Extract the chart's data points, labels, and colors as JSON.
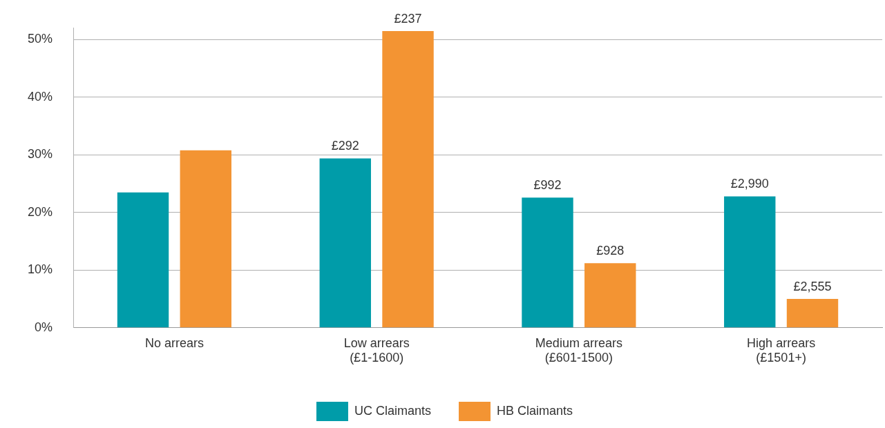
{
  "chart_data": {
    "type": "bar",
    "categories": [
      "No arrears",
      "Low arrears (£1-1600)",
      "Medium arrears (£601-1500)",
      "High arrears (£1501+)"
    ],
    "series": [
      {
        "name": "UC Claimants",
        "color": "#009ca9",
        "values": [
          23.5,
          29.4,
          22.6,
          22.8
        ]
      },
      {
        "name": "HB Claimants",
        "color": "#f39433",
        "values": [
          30.8,
          51.5,
          11.2,
          5.0
        ]
      }
    ],
    "annotations": [
      "£292",
      "£237",
      "£992",
      "£928",
      "£2,990",
      "£2,555"
    ],
    "ylim": [
      0,
      52
    ],
    "yticks": [
      {
        "value": 0,
        "label": "0%"
      },
      {
        "value": 10,
        "label": "10%"
      },
      {
        "value": 20,
        "label": "20%"
      },
      {
        "value": 30,
        "label": "30%"
      },
      {
        "value": 40,
        "label": "40%"
      },
      {
        "value": 50,
        "label": "50%"
      }
    ],
    "grid": "y",
    "legend": "bottom"
  }
}
